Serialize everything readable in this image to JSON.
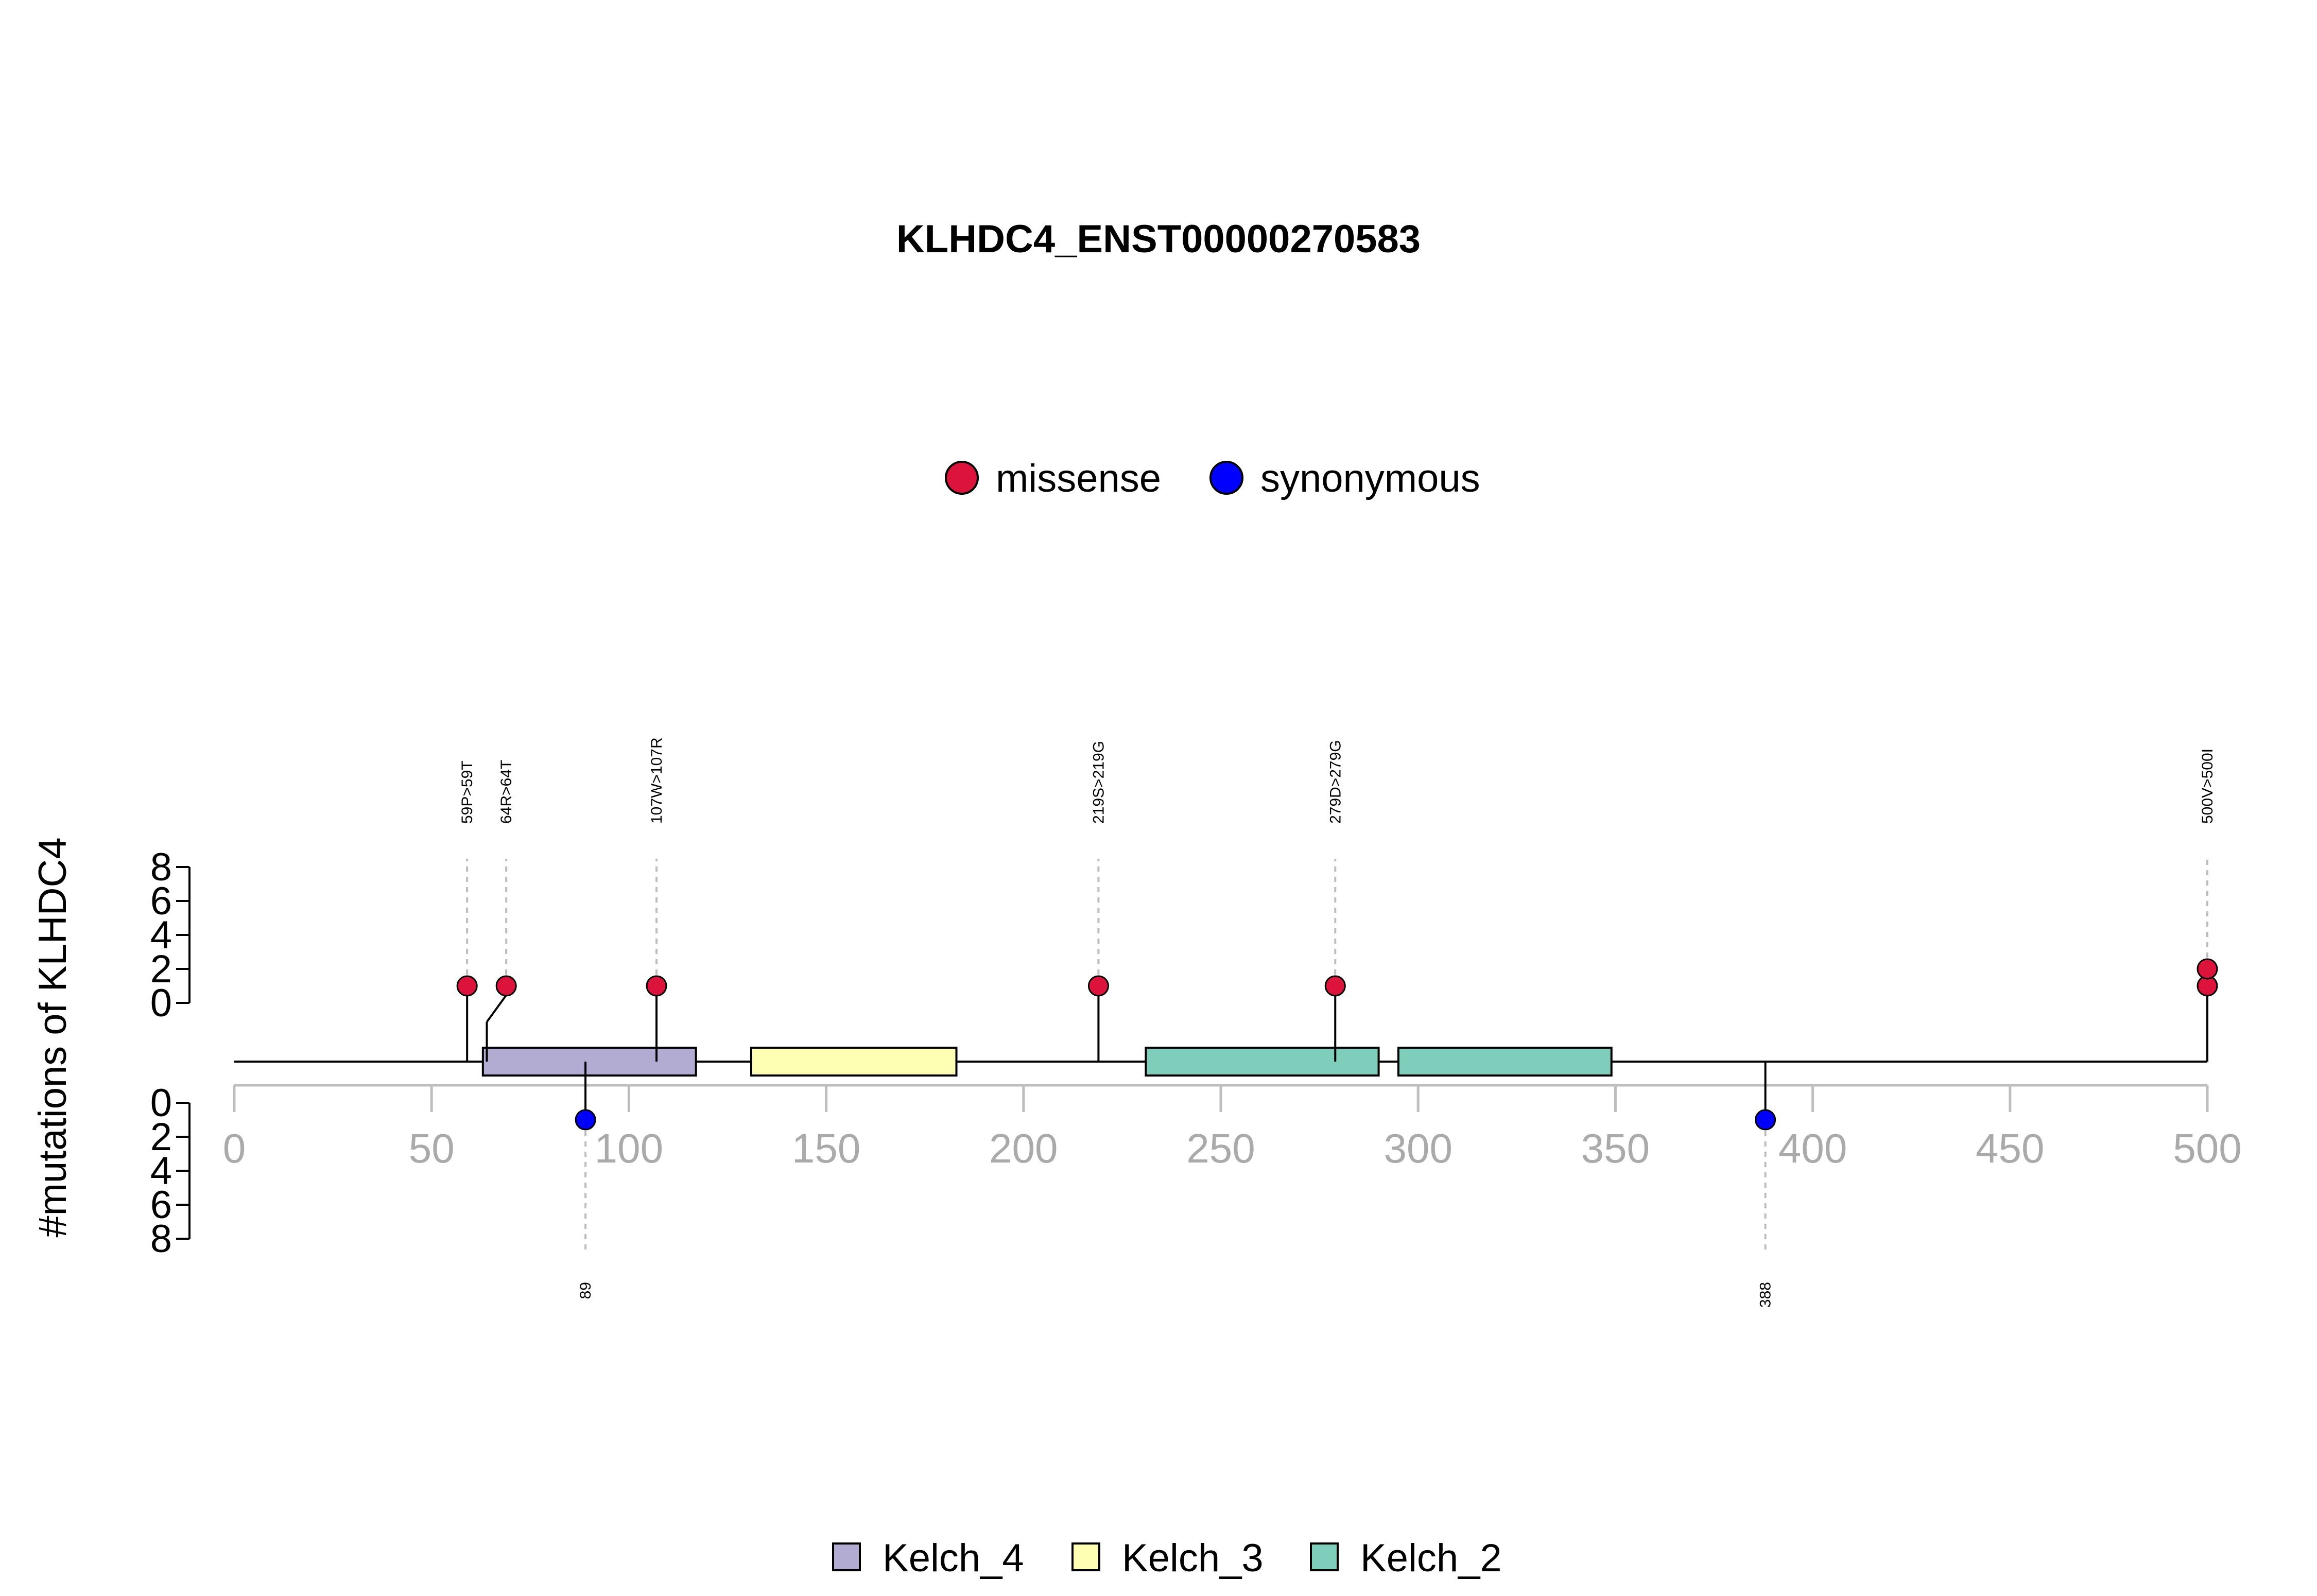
{
  "chart_data": {
    "type": "lollipop",
    "title": "KLHDC4_ENST00000270583",
    "ylabel": "#mutations of KLHDC4",
    "xlim": [
      0,
      500
    ],
    "x_ticks": [
      0,
      50,
      100,
      150,
      200,
      250,
      300,
      350,
      400,
      450,
      500
    ],
    "y_ticks_upper": [
      0,
      2,
      4,
      6,
      8
    ],
    "y_ticks_lower": [
      0,
      2,
      4,
      6,
      8
    ],
    "legend_mutations": [
      {
        "label": "missense",
        "color": "#dc143c"
      },
      {
        "label": "synonymous",
        "color": "#0000ff"
      }
    ],
    "legend_domains": [
      {
        "label": "Kelch_4",
        "color": "#b2abd2"
      },
      {
        "label": "Kelch_3",
        "color": "#ffffb3"
      },
      {
        "label": "Kelch_2",
        "color": "#7fcdbb"
      }
    ],
    "domains": [
      {
        "name": "Kelch_4",
        "start": 63,
        "end": 117,
        "color": "#b2abd2"
      },
      {
        "name": "Kelch_3",
        "start": 131,
        "end": 183,
        "color": "#ffffb3"
      },
      {
        "name": "Kelch_2",
        "start": 231,
        "end": 290,
        "color": "#7fcdbb"
      },
      {
        "name": "Kelch_2",
        "start": 295,
        "end": 349,
        "color": "#7fcdbb"
      }
    ],
    "mutations_upper": [
      {
        "position": 59,
        "label": "59P>59T",
        "type": "missense",
        "count": 1,
        "color": "#dc143c"
      },
      {
        "position": 64,
        "label": "64R>64T",
        "type": "missense",
        "count": 1,
        "color": "#dc143c"
      },
      {
        "position": 107,
        "label": "107W>107R",
        "type": "missense",
        "count": 1,
        "color": "#dc143c"
      },
      {
        "position": 219,
        "label": "219S>219G",
        "type": "missense",
        "count": 1,
        "color": "#dc143c"
      },
      {
        "position": 279,
        "label": "279D>279G",
        "type": "missense",
        "count": 1,
        "color": "#dc143c"
      },
      {
        "position": 500,
        "label": "500V>500I",
        "type": "missense",
        "count": 2,
        "color": "#dc143c"
      }
    ],
    "mutations_lower": [
      {
        "position": 89,
        "label": "89",
        "type": "synonymous",
        "count": 1,
        "color": "#0000ff"
      },
      {
        "position": 388,
        "label": "388",
        "type": "synonymous",
        "count": 1,
        "color": "#0000ff"
      }
    ]
  }
}
